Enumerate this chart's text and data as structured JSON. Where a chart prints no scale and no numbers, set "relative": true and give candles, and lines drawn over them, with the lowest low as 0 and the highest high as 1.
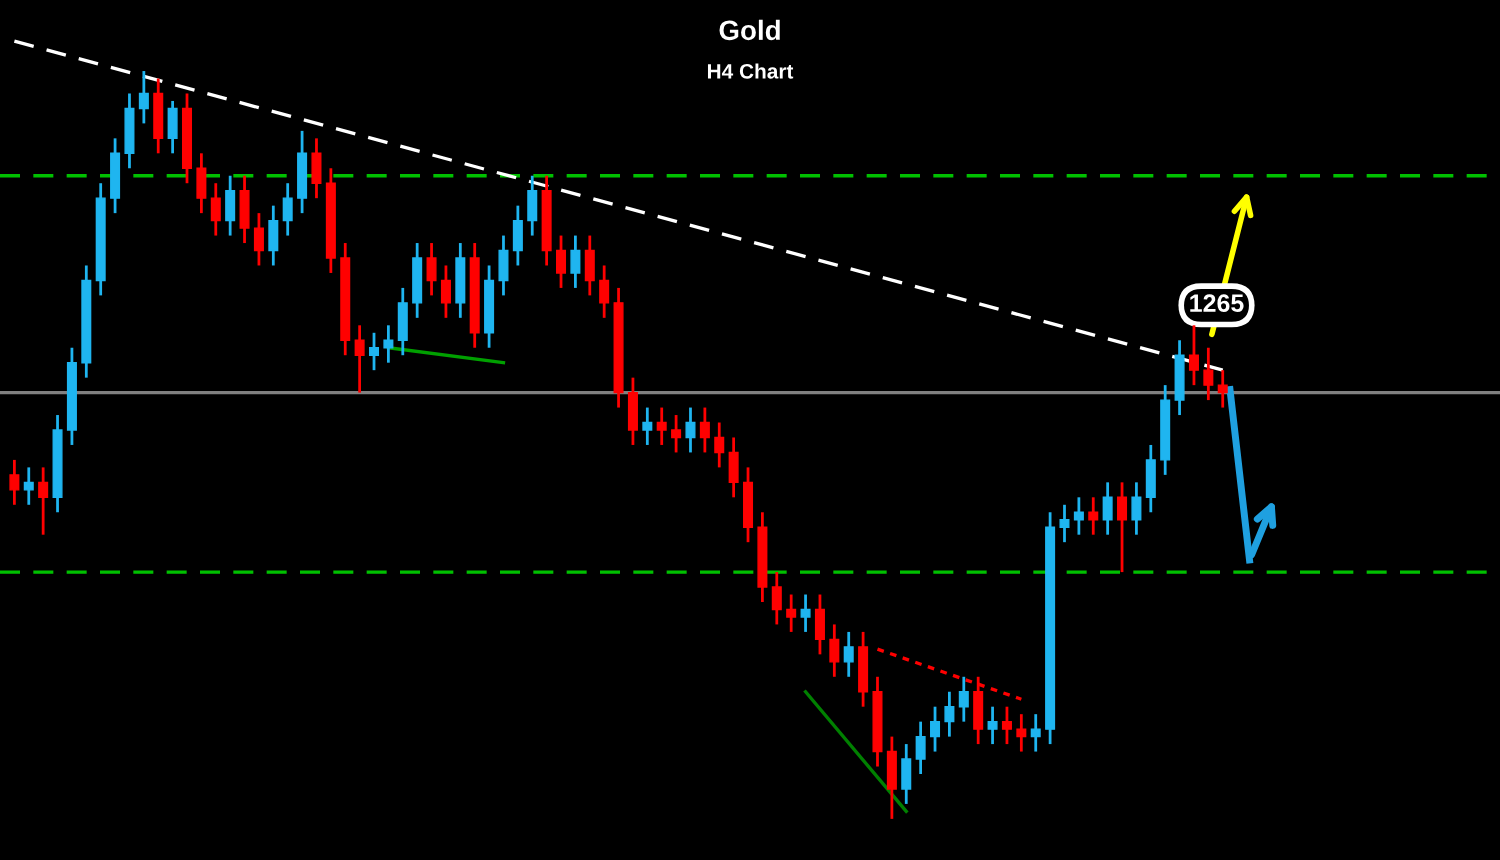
{
  "chart_data": {
    "type": "candlestick",
    "title": "Gold",
    "subtitle": "H4 Chart",
    "relative": true,
    "categories": [
      null,
      null,
      null,
      null,
      null,
      null,
      null,
      null,
      null,
      null,
      null,
      null,
      null,
      null,
      null,
      null,
      null,
      null,
      null,
      null,
      null,
      null,
      null,
      null,
      null,
      null,
      null,
      null,
      null,
      null,
      null,
      null,
      null,
      null,
      null,
      null,
      null,
      null,
      null,
      null,
      null,
      null,
      null,
      null,
      null,
      null,
      null,
      null,
      null,
      null,
      null,
      null,
      null,
      null,
      null,
      null,
      null,
      null,
      null,
      null,
      null,
      null,
      null,
      null,
      null,
      null,
      null,
      null,
      null,
      null,
      null,
      null,
      null,
      null,
      null,
      null,
      null,
      null,
      null,
      null,
      null,
      null,
      null,
      null,
      null
    ],
    "tick_labels": false,
    "series": [
      {
        "ohlc": [
          [
            0.46,
            0.48,
            0.42,
            0.44
          ],
          [
            0.44,
            0.47,
            0.42,
            0.45
          ],
          [
            0.45,
            0.47,
            0.38,
            0.43
          ],
          [
            0.43,
            0.54,
            0.41,
            0.52
          ],
          [
            0.52,
            0.63,
            0.5,
            0.61
          ],
          [
            0.61,
            0.74,
            0.59,
            0.72
          ],
          [
            0.72,
            0.85,
            0.7,
            0.83
          ],
          [
            0.83,
            0.91,
            0.81,
            0.89
          ],
          [
            0.89,
            0.97,
            0.87,
            0.95
          ],
          [
            0.95,
            1.0,
            0.93,
            0.97
          ],
          [
            0.97,
            0.99,
            0.89,
            0.91
          ],
          [
            0.91,
            0.96,
            0.89,
            0.95
          ],
          [
            0.95,
            0.97,
            0.85,
            0.87
          ],
          [
            0.87,
            0.89,
            0.81,
            0.83
          ],
          [
            0.83,
            0.85,
            0.78,
            0.8
          ],
          [
            0.8,
            0.86,
            0.78,
            0.84
          ],
          [
            0.84,
            0.86,
            0.77,
            0.79
          ],
          [
            0.79,
            0.81,
            0.74,
            0.76
          ],
          [
            0.76,
            0.82,
            0.74,
            0.8
          ],
          [
            0.8,
            0.85,
            0.78,
            0.83
          ],
          [
            0.83,
            0.92,
            0.81,
            0.89
          ],
          [
            0.89,
            0.91,
            0.83,
            0.85
          ],
          [
            0.85,
            0.87,
            0.73,
            0.75
          ],
          [
            0.75,
            0.77,
            0.62,
            0.64
          ],
          [
            0.64,
            0.66,
            0.57,
            0.62
          ],
          [
            0.62,
            0.65,
            0.6,
            0.63
          ],
          [
            0.63,
            0.66,
            0.61,
            0.64
          ],
          [
            0.64,
            0.71,
            0.62,
            0.69
          ],
          [
            0.69,
            0.77,
            0.67,
            0.75
          ],
          [
            0.75,
            0.77,
            0.7,
            0.72
          ],
          [
            0.72,
            0.74,
            0.67,
            0.69
          ],
          [
            0.69,
            0.77,
            0.67,
            0.75
          ],
          [
            0.75,
            0.77,
            0.63,
            0.65
          ],
          [
            0.65,
            0.74,
            0.63,
            0.72
          ],
          [
            0.72,
            0.78,
            0.7,
            0.76
          ],
          [
            0.76,
            0.82,
            0.74,
            0.8
          ],
          [
            0.8,
            0.86,
            0.78,
            0.84
          ],
          [
            0.84,
            0.86,
            0.74,
            0.76
          ],
          [
            0.76,
            0.78,
            0.71,
            0.73
          ],
          [
            0.73,
            0.78,
            0.71,
            0.76
          ],
          [
            0.76,
            0.78,
            0.7,
            0.72
          ],
          [
            0.72,
            0.74,
            0.67,
            0.69
          ],
          [
            0.69,
            0.71,
            0.55,
            0.57
          ],
          [
            0.57,
            0.59,
            0.5,
            0.52
          ],
          [
            0.52,
            0.55,
            0.5,
            0.53
          ],
          [
            0.53,
            0.55,
            0.5,
            0.52
          ],
          [
            0.52,
            0.54,
            0.49,
            0.51
          ],
          [
            0.51,
            0.55,
            0.49,
            0.53
          ],
          [
            0.53,
            0.55,
            0.49,
            0.51
          ],
          [
            0.51,
            0.53,
            0.47,
            0.49
          ],
          [
            0.49,
            0.51,
            0.43,
            0.45
          ],
          [
            0.45,
            0.47,
            0.37,
            0.39
          ],
          [
            0.39,
            0.41,
            0.29,
            0.31
          ],
          [
            0.31,
            0.33,
            0.26,
            0.28
          ],
          [
            0.28,
            0.3,
            0.25,
            0.27
          ],
          [
            0.27,
            0.3,
            0.25,
            0.28
          ],
          [
            0.28,
            0.3,
            0.22,
            0.24
          ],
          [
            0.24,
            0.26,
            0.19,
            0.21
          ],
          [
            0.21,
            0.25,
            0.19,
            0.23
          ],
          [
            0.23,
            0.25,
            0.15,
            0.17
          ],
          [
            0.17,
            0.19,
            0.07,
            0.09
          ],
          [
            0.09,
            0.11,
            0.0,
            0.04
          ],
          [
            0.04,
            0.1,
            0.02,
            0.08
          ],
          [
            0.08,
            0.13,
            0.06,
            0.11
          ],
          [
            0.11,
            0.15,
            0.09,
            0.13
          ],
          [
            0.13,
            0.17,
            0.11,
            0.15
          ],
          [
            0.15,
            0.19,
            0.13,
            0.17
          ],
          [
            0.17,
            0.19,
            0.1,
            0.12
          ],
          [
            0.12,
            0.15,
            0.1,
            0.13
          ],
          [
            0.13,
            0.15,
            0.1,
            0.12
          ],
          [
            0.12,
            0.14,
            0.09,
            0.11
          ],
          [
            0.11,
            0.14,
            0.09,
            0.12
          ],
          [
            0.12,
            0.41,
            0.1,
            0.39
          ],
          [
            0.39,
            0.42,
            0.37,
            0.4
          ],
          [
            0.4,
            0.43,
            0.38,
            0.41
          ],
          [
            0.41,
            0.43,
            0.38,
            0.4
          ],
          [
            0.4,
            0.45,
            0.38,
            0.43
          ],
          [
            0.43,
            0.45,
            0.33,
            0.4
          ],
          [
            0.4,
            0.45,
            0.38,
            0.43
          ],
          [
            0.43,
            0.5,
            0.41,
            0.48
          ],
          [
            0.48,
            0.58,
            0.46,
            0.56
          ],
          [
            0.56,
            0.64,
            0.54,
            0.62
          ],
          [
            0.62,
            0.66,
            0.58,
            0.6
          ],
          [
            0.6,
            0.63,
            0.56,
            0.58
          ],
          [
            0.58,
            0.6,
            0.55,
            0.57
          ]
        ],
        "colors": [
          "#ff0000",
          "#1fb5f0",
          "#ff0000",
          "#1fb5f0",
          "#1fb5f0",
          "#1fb5f0",
          "#1fb5f0",
          "#1fb5f0",
          "#1fb5f0",
          "#1fb5f0",
          "#ff0000",
          "#1fb5f0",
          "#ff0000",
          "#ff0000",
          "#ff0000",
          "#1fb5f0",
          "#ff0000",
          "#ff0000",
          "#1fb5f0",
          "#1fb5f0",
          "#1fb5f0",
          "#ff0000",
          "#ff0000",
          "#ff0000",
          "#ff0000",
          "#1fb5f0",
          "#1fb5f0",
          "#1fb5f0",
          "#1fb5f0",
          "#ff0000",
          "#ff0000",
          "#1fb5f0",
          "#ff0000",
          "#1fb5f0",
          "#1fb5f0",
          "#1fb5f0",
          "#1fb5f0",
          "#ff0000",
          "#ff0000",
          "#1fb5f0",
          "#ff0000",
          "#ff0000",
          "#ff0000",
          "#ff0000",
          "#1fb5f0",
          "#ff0000",
          "#ff0000",
          "#1fb5f0",
          "#ff0000",
          "#ff0000",
          "#ff0000",
          "#ff0000",
          "#ff0000",
          "#ff0000",
          "#ff0000",
          "#1fb5f0",
          "#ff0000",
          "#ff0000",
          "#1fb5f0",
          "#ff0000",
          "#ff0000",
          "#ff0000",
          "#1fb5f0",
          "#1fb5f0",
          "#1fb5f0",
          "#1fb5f0",
          "#1fb5f0",
          "#ff0000",
          "#1fb5f0",
          "#ff0000",
          "#ff0000",
          "#1fb5f0",
          "#1fb5f0",
          "#1fb5f0",
          "#1fb5f0",
          "#ff0000",
          "#1fb5f0",
          "#ff0000",
          "#1fb5f0",
          "#1fb5f0",
          "#1fb5f0",
          "#1fb5f0",
          "#ff0000",
          "#ff0000",
          "#ff0000"
        ]
      },
      {
        "type": "line",
        "color": "#ffffff",
        "line_style": "dashed",
        "values": [
          1.04,
          null,
          null,
          null,
          null,
          null,
          null,
          null,
          null,
          null,
          null,
          null,
          null,
          null,
          null,
          null,
          null,
          null,
          null,
          null,
          null,
          null,
          null,
          null,
          null,
          null,
          null,
          null,
          null,
          null,
          null,
          null,
          null,
          null,
          null,
          null,
          null,
          null,
          null,
          null,
          null,
          null,
          null,
          null,
          null,
          null,
          null,
          null,
          null,
          null,
          null,
          null,
          null,
          null,
          null,
          null,
          null,
          null,
          null,
          null,
          null,
          null,
          null,
          null,
          null,
          null,
          null,
          null,
          null,
          null,
          null,
          null,
          null,
          null,
          null,
          null,
          null,
          null,
          null,
          null,
          null,
          null,
          null,
          null,
          0.6
        ]
      },
      {
        "type": "line",
        "color": "#00a000",
        "line_style": "solid",
        "values": [
          null,
          null,
          null,
          null,
          null,
          null,
          null,
          null,
          null,
          null,
          null,
          null,
          null,
          null,
          null,
          null,
          null,
          null,
          null,
          null,
          null,
          null,
          null,
          null,
          null,
          null,
          0.63,
          null,
          null,
          null,
          null,
          null,
          null,
          null,
          0.61,
          null,
          null,
          null,
          null,
          null,
          null,
          null,
          null,
          null,
          null,
          null,
          null,
          null,
          null,
          null,
          null,
          null,
          null,
          null,
          null,
          null,
          null,
          null,
          null,
          null,
          null,
          null,
          null,
          null,
          null,
          null,
          null,
          null,
          null,
          null,
          null,
          null,
          null,
          null,
          null,
          null,
          null,
          null,
          null,
          null,
          null,
          null,
          null,
          null,
          null
        ]
      },
      {
        "type": "line",
        "color": "#ff0000",
        "line_style": "dotted",
        "values": [
          null,
          null,
          null,
          null,
          null,
          null,
          null,
          null,
          null,
          null,
          null,
          null,
          null,
          null,
          null,
          null,
          null,
          null,
          null,
          null,
          null,
          null,
          null,
          null,
          null,
          null,
          null,
          null,
          null,
          null,
          null,
          null,
          null,
          null,
          null,
          null,
          null,
          null,
          null,
          null,
          null,
          null,
          null,
          null,
          null,
          null,
          null,
          null,
          null,
          null,
          null,
          null,
          null,
          null,
          null,
          null,
          null,
          null,
          null,
          null,
          0.227,
          null,
          null,
          null,
          null,
          null,
          null,
          null,
          null,
          null,
          0.16,
          null,
          null,
          null,
          null,
          null,
          null,
          null,
          null,
          null,
          null,
          null,
          null,
          null,
          null
        ]
      },
      {
        "type": "line",
        "color": "#008000",
        "line_style": "solid",
        "values": [
          null,
          null,
          null,
          null,
          null,
          null,
          null,
          null,
          null,
          null,
          null,
          null,
          null,
          null,
          null,
          null,
          null,
          null,
          null,
          null,
          null,
          null,
          null,
          null,
          null,
          null,
          null,
          null,
          null,
          null,
          null,
          null,
          null,
          null,
          null,
          null,
          null,
          null,
          null,
          null,
          null,
          null,
          null,
          null,
          null,
          null,
          null,
          null,
          null,
          null,
          null,
          null,
          null,
          null,
          null,
          0.17,
          null,
          null,
          null,
          null,
          null,
          null,
          0.01,
          null,
          null,
          null,
          null,
          null,
          null,
          null,
          null,
          null,
          null,
          null,
          null,
          null,
          null,
          null,
          null,
          null,
          null,
          null,
          null,
          null,
          null
        ]
      }
    ],
    "ref_lines": [
      {
        "axis": "y",
        "value": 0.86,
        "color": "#00c000",
        "line_style": "dashed"
      },
      {
        "axis": "y",
        "value": 0.57,
        "color": "#808080",
        "line_style": "solid"
      },
      {
        "axis": "y",
        "value": 0.33,
        "color": "#00c000",
        "line_style": "dashed"
      }
    ],
    "annotations": [
      "1265"
    ]
  }
}
